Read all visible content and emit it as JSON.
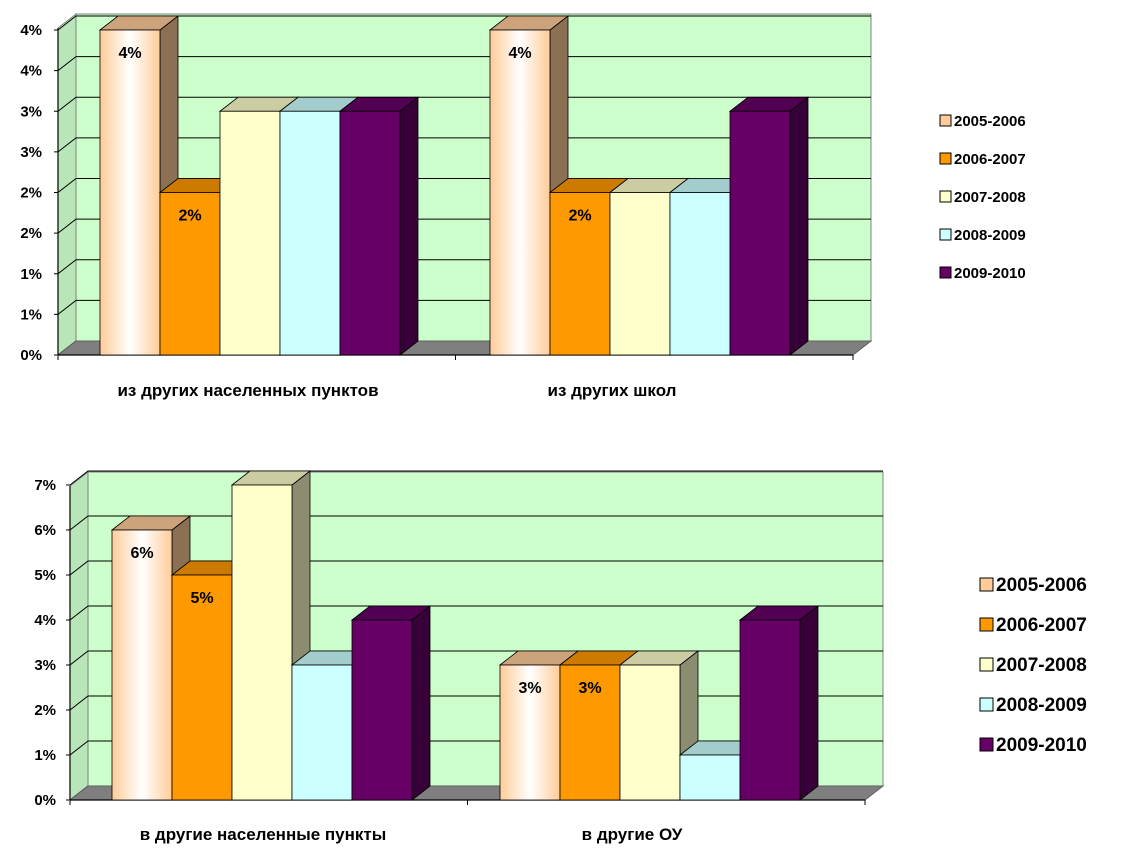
{
  "colors": {
    "wall": "#ccffcc",
    "floor": "#7f7f7f",
    "series": [
      "#ffcc99",
      "#ff9900",
      "#ffffcc",
      "#ccffff",
      "#660066"
    ]
  },
  "chart_data": [
    {
      "type": "bar",
      "title": "",
      "xlabel": "",
      "ylabel": "",
      "categories": [
        "из других населенных пунктов",
        "из других школ"
      ],
      "yticks": [
        "0%",
        "1%",
        "1%",
        "2%",
        "2%",
        "3%",
        "3%",
        "4%",
        "4%"
      ],
      "ylim": [
        0,
        4
      ],
      "grid": true,
      "legend_position": "right",
      "series": [
        {
          "name": "2005-2006",
          "values": [
            4,
            4
          ],
          "labels": [
            "4%",
            "4%"
          ]
        },
        {
          "name": "2006-2007",
          "values": [
            2,
            2
          ],
          "labels": [
            "2%",
            "2%"
          ]
        },
        {
          "name": "2007-2008",
          "values": [
            3,
            2
          ],
          "labels": [
            "",
            ""
          ]
        },
        {
          "name": "2008-2009",
          "values": [
            3,
            2
          ],
          "labels": [
            "",
            ""
          ]
        },
        {
          "name": "2009-2010",
          "values": [
            3,
            3
          ],
          "labels": [
            "",
            ""
          ]
        }
      ]
    },
    {
      "type": "bar",
      "title": "",
      "xlabel": "",
      "ylabel": "",
      "categories": [
        "в другие населенные пункты",
        "в другие ОУ"
      ],
      "yticks": [
        "0%",
        "1%",
        "2%",
        "3%",
        "4%",
        "5%",
        "6%",
        "7%"
      ],
      "ylim": [
        0,
        7
      ],
      "grid": true,
      "legend_position": "right",
      "series": [
        {
          "name": "2005-2006",
          "values": [
            6,
            3
          ],
          "labels": [
            "6%",
            "3%"
          ]
        },
        {
          "name": "2006-2007",
          "values": [
            5,
            3
          ],
          "labels": [
            "5%",
            "3%"
          ]
        },
        {
          "name": "2007-2008",
          "values": [
            7,
            3
          ],
          "labels": [
            "",
            ""
          ]
        },
        {
          "name": "2008-2009",
          "values": [
            3,
            1
          ],
          "labels": [
            "",
            ""
          ]
        },
        {
          "name": "2009-2010",
          "values": [
            4,
            4
          ],
          "labels": [
            "",
            ""
          ]
        }
      ]
    }
  ]
}
